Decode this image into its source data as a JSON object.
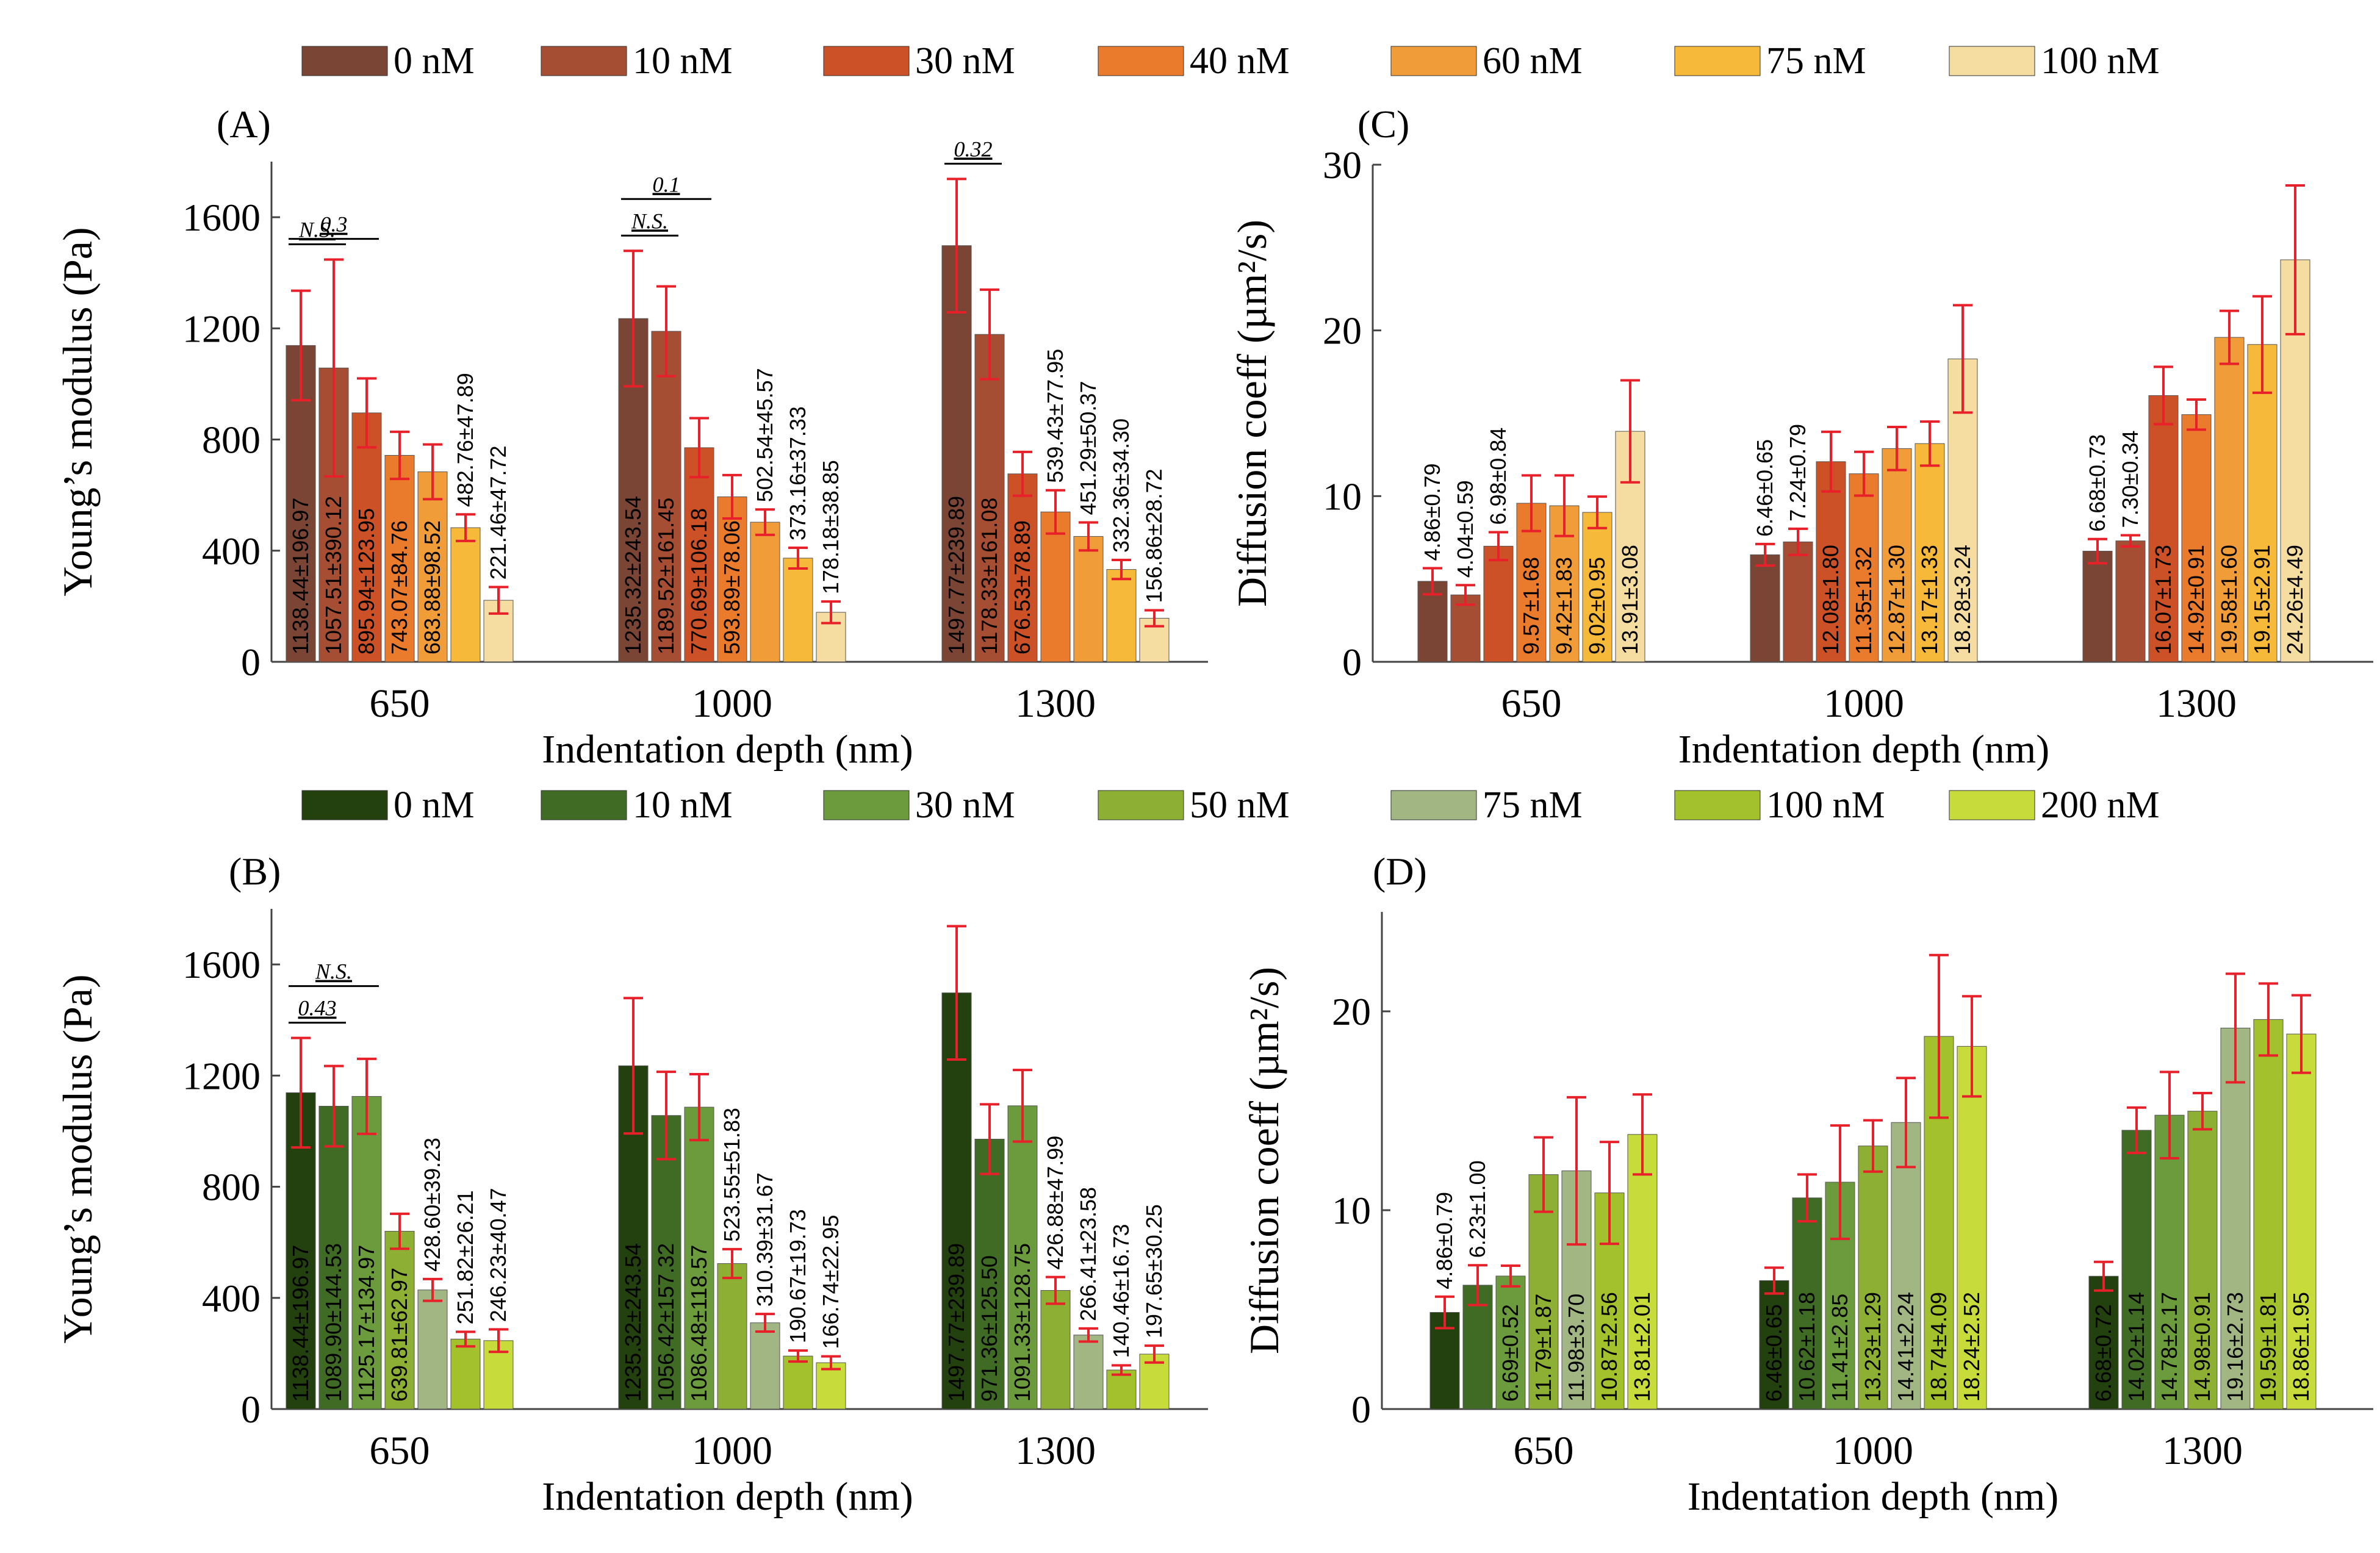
{
  "legends": [
    {
      "name": "legend-top",
      "entries": [
        {
          "label": "0 nM",
          "color": "#7a4535"
        },
        {
          "label": "10 nM",
          "color": "#a64e34"
        },
        {
          "label": "30 nM",
          "color": "#cc5126"
        },
        {
          "label": "40 nM",
          "color": "#ea7a2c"
        },
        {
          "label": "60 nM",
          "color": "#f09c38"
        },
        {
          "label": "75 nM",
          "color": "#f7b93a"
        },
        {
          "label": "100 nM",
          "color": "#f5dca0"
        }
      ]
    },
    {
      "name": "legend-bottom",
      "entries": [
        {
          "label": "0 nM",
          "color": "#23400f"
        },
        {
          "label": "10 nM",
          "color": "#3f6b25"
        },
        {
          "label": "30 nM",
          "color": "#6b9b3c"
        },
        {
          "label": "50 nM",
          "color": "#8db034"
        },
        {
          "label": "75 nM",
          "color": "#a1b682"
        },
        {
          "label": "100 nM",
          "color": "#a3c12c"
        },
        {
          "label": "200 nM",
          "color": "#c7dc3a"
        }
      ]
    }
  ],
  "error_color": "#e8202a",
  "annotation_color": "#e8202a",
  "chart_data": [
    {
      "id": "A",
      "panel_label": "(A)",
      "type": "bar",
      "title": "",
      "xlabel": "Indentation depth (nm)",
      "ylabel": "Young’s modulus (Pa)",
      "ylim": [
        0,
        1800
      ],
      "yticks": [
        0,
        400,
        800,
        1200,
        1600
      ],
      "tick_labels": [
        "0",
        "400",
        "800",
        "1200",
        "1600"
      ],
      "categories": [
        "650",
        "1000",
        "1300"
      ],
      "legend": "legend-top",
      "series": [
        {
          "name": "0 nM",
          "color": "#7a4535",
          "values": [
            1138.44,
            1235.32,
            1497.77
          ],
          "errors": [
            196.97,
            243.54,
            239.89
          ],
          "labels": [
            "1138.44±196.97",
            "1235.32±243.54",
            "1497.77±239.89"
          ]
        },
        {
          "name": "10 nM",
          "color": "#a64e34",
          "values": [
            1057.51,
            1189.52,
            1178.33
          ],
          "errors": [
            390.12,
            161.45,
            161.08
          ],
          "labels": [
            "1057.51±390.12",
            "1189.52±161.45",
            "1178.33±161.08"
          ]
        },
        {
          "name": "30 nM",
          "color": "#cc5126",
          "values": [
            895.94,
            770.69,
            676.53
          ],
          "errors": [
            123.95,
            106.18,
            78.89
          ],
          "labels": [
            "895.94±123.95",
            "770.69±106.18",
            "676.53±78.89"
          ]
        },
        {
          "name": "40 nM",
          "color": "#ea7a2c",
          "values": [
            743.07,
            593.89,
            539.43
          ],
          "errors": [
            84.76,
            78.06,
            77.95
          ],
          "labels": [
            "743.07±84.76",
            "593.89±78.06",
            "539.43±77.95"
          ]
        },
        {
          "name": "60 nM",
          "color": "#f09c38",
          "values": [
            683.88,
            502.54,
            451.29
          ],
          "errors": [
            98.52,
            45.57,
            50.37
          ],
          "labels": [
            "683.88±98.52",
            "502.54±45.57",
            "451.29±50.37"
          ]
        },
        {
          "name": "75 nM",
          "color": "#f7b93a",
          "values": [
            482.76,
            373.16,
            332.36
          ],
          "errors": [
            47.89,
            37.33,
            34.3
          ],
          "labels": [
            "482.76±47.89",
            "373.16±37.33",
            "332.36±34.30"
          ]
        },
        {
          "name": "100 nM",
          "color": "#f5dca0",
          "values": [
            221.46,
            178.18,
            156.86
          ],
          "errors": [
            47.72,
            38.85,
            28.72
          ],
          "labels": [
            "221.46±47.72",
            "178.18±38.85",
            "156.86±28.72"
          ]
        }
      ],
      "annotations": [
        {
          "group": 0,
          "from": 0,
          "to": 1,
          "text": "N.S.",
          "level": 1
        },
        {
          "group": 0,
          "from": 0,
          "to": 2,
          "text": "0.3",
          "level": 2
        },
        {
          "group": 1,
          "from": 0,
          "to": 1,
          "text": "N.S.",
          "level": 1
        },
        {
          "group": 1,
          "from": 0,
          "to": 2,
          "text": "0.1",
          "level": 2
        },
        {
          "group": 2,
          "from": 0,
          "to": 1,
          "text": "0.32",
          "level": 1
        }
      ]
    },
    {
      "id": "C",
      "panel_label": "(C)",
      "type": "bar",
      "title": "",
      "xlabel": "Indentation depth (nm)",
      "ylabel": "Diffusion coeff (µm²/s)",
      "ylim": [
        0,
        30
      ],
      "yticks": [
        0,
        10,
        20,
        30
      ],
      "tick_labels": [
        "0",
        "10",
        "20",
        "30"
      ],
      "categories": [
        "650",
        "1000",
        "1300"
      ],
      "legend": "legend-top",
      "series": [
        {
          "name": "0 nM",
          "color": "#7a4535",
          "values": [
            4.86,
            6.46,
            6.68
          ],
          "errors": [
            0.79,
            0.65,
            0.73
          ],
          "labels": [
            "4.86±0.79",
            "6.46±0.65",
            "6.68±0.73"
          ]
        },
        {
          "name": "10 nM",
          "color": "#a64e34",
          "values": [
            4.04,
            7.24,
            7.3
          ],
          "errors": [
            0.59,
            0.79,
            0.34
          ],
          "labels": [
            "4.04±0.59",
            "7.24±0.79",
            "7.30±0.34"
          ]
        },
        {
          "name": "30 nM",
          "color": "#cc5126",
          "values": [
            6.98,
            12.08,
            16.07
          ],
          "errors": [
            0.84,
            1.8,
            1.73
          ],
          "labels": [
            "6.98±0.84",
            "12.08±1.80",
            "16.07±1.73"
          ]
        },
        {
          "name": "40 nM",
          "color": "#ea7a2c",
          "values": [
            9.57,
            11.35,
            14.92
          ],
          "errors": [
            1.68,
            1.32,
            0.91
          ],
          "labels": [
            "9.57±1.68",
            "11.35±1.32",
            "14.92±0.91"
          ]
        },
        {
          "name": "60 nM",
          "color": "#f09c38",
          "values": [
            9.42,
            12.87,
            19.58
          ],
          "errors": [
            1.83,
            1.3,
            1.6
          ],
          "labels": [
            "9.42±1.83",
            "12.87±1.30",
            "19.58±1.60"
          ]
        },
        {
          "name": "75 nM",
          "color": "#f7b93a",
          "values": [
            9.02,
            13.17,
            19.15
          ],
          "errors": [
            0.95,
            1.33,
            2.91
          ],
          "labels": [
            "9.02±0.95",
            "13.17±1.33",
            "19.15±2.91"
          ]
        },
        {
          "name": "100 nM",
          "color": "#f5dca0",
          "values": [
            13.91,
            18.28,
            24.26
          ],
          "errors": [
            3.08,
            3.24,
            4.49
          ],
          "labels": [
            "13.91±3.08",
            "18.28±3.24",
            "24.26±4.49"
          ]
        }
      ],
      "annotations": []
    },
    {
      "id": "B",
      "panel_label": "(B)",
      "type": "bar",
      "title": "",
      "xlabel": "Indentation depth (nm)",
      "ylabel": "Young’s modulus (Pa)",
      "ylim": [
        0,
        1800
      ],
      "yticks": [
        0,
        400,
        800,
        1200,
        1600
      ],
      "tick_labels": [
        "0",
        "400",
        "800",
        "1200",
        "1600"
      ],
      "categories": [
        "650",
        "1000",
        "1300"
      ],
      "legend": "legend-bottom",
      "series": [
        {
          "name": "0 nM",
          "color": "#23400f",
          "values": [
            1138.44,
            1235.32,
            1497.77
          ],
          "errors": [
            196.97,
            243.54,
            239.89
          ],
          "labels": [
            "1138.44±196.97",
            "1235.32±243.54",
            "1497.77±239.89"
          ]
        },
        {
          "name": "10 nM",
          "color": "#3f6b25",
          "values": [
            1089.9,
            1056.42,
            971.36
          ],
          "errors": [
            144.53,
            157.32,
            125.5
          ],
          "labels": [
            "1089.90±144.53",
            "1056.42±157.32",
            "971.36±125.50"
          ]
        },
        {
          "name": "30 nM",
          "color": "#6b9b3c",
          "values": [
            1125.17,
            1086.48,
            1091.33
          ],
          "errors": [
            134.97,
            118.57,
            128.75
          ],
          "labels": [
            "1125.17±134.97",
            "1086.48±118.57",
            "1091.33±128.75"
          ]
        },
        {
          "name": "50 nM",
          "color": "#8db034",
          "values": [
            639.81,
            523.55,
            426.88
          ],
          "errors": [
            62.97,
            51.83,
            47.99
          ],
          "labels": [
            "639.81±62.97",
            "523.55±51.83",
            "426.88±47.99"
          ]
        },
        {
          "name": "75 nM",
          "color": "#a1b682",
          "values": [
            428.6,
            310.39,
            266.41
          ],
          "errors": [
            39.23,
            31.67,
            23.58
          ],
          "labels": [
            "428.60±39.23",
            "310.39±31.67",
            "266.41±23.58"
          ]
        },
        {
          "name": "100 nM",
          "color": "#a3c12c",
          "values": [
            251.82,
            190.67,
            140.46
          ],
          "errors": [
            26.21,
            19.73,
            16.73
          ],
          "labels": [
            "251.82±26.21",
            "190.67±19.73",
            "140.46±16.73"
          ]
        },
        {
          "name": "200 nM",
          "color": "#c7dc3a",
          "values": [
            246.23,
            166.74,
            197.65
          ],
          "errors": [
            40.47,
            22.95,
            30.25
          ],
          "labels": [
            "246.23±40.47",
            "166.74±22.95",
            "197.65±30.25"
          ]
        }
      ],
      "annotations": [
        {
          "group": 0,
          "from": 0,
          "to": 1,
          "text": "0.43",
          "level": 1
        },
        {
          "group": 0,
          "from": 0,
          "to": 2,
          "text": "N.S.",
          "level": 2
        }
      ]
    },
    {
      "id": "D",
      "panel_label": "(D)",
      "type": "bar",
      "title": "",
      "xlabel": "Indentation depth (nm)",
      "ylabel": "Diffusion coeff (µm²/s)",
      "ylim": [
        0,
        25
      ],
      "yticks": [
        0,
        10,
        20
      ],
      "tick_labels": [
        "0",
        "10",
        "20"
      ],
      "categories": [
        "650",
        "1000",
        "1300"
      ],
      "legend": "legend-bottom",
      "series": [
        {
          "name": "0 nM",
          "color": "#23400f",
          "values": [
            4.86,
            6.46,
            6.68
          ],
          "errors": [
            0.79,
            0.65,
            0.72
          ],
          "labels": [
            "4.86±0.79",
            "6.46±0.65",
            "6.68±0.72"
          ]
        },
        {
          "name": "10 nM",
          "color": "#3f6b25",
          "values": [
            6.23,
            10.62,
            14.02
          ],
          "errors": [
            1.0,
            1.18,
            1.14
          ],
          "labels": [
            "6.23±1.00",
            "10.62±1.18",
            "14.02±1.14"
          ]
        },
        {
          "name": "30 nM",
          "color": "#6b9b3c",
          "values": [
            6.69,
            11.41,
            14.78
          ],
          "errors": [
            0.52,
            2.85,
            2.17
          ],
          "labels": [
            "6.69±0.52",
            "11.41±2.85",
            "14.78±2.17"
          ]
        },
        {
          "name": "50 nM",
          "color": "#8db034",
          "values": [
            11.79,
            13.23,
            14.98
          ],
          "errors": [
            1.87,
            1.29,
            0.91
          ],
          "labels": [
            "11.79±1.87",
            "13.23±1.29",
            "14.98±0.91"
          ]
        },
        {
          "name": "75 nM",
          "color": "#a1b682",
          "values": [
            11.98,
            14.41,
            19.16
          ],
          "errors": [
            3.7,
            2.24,
            2.73
          ],
          "labels": [
            "11.98±3.70",
            "14.41±2.24",
            "19.16±2.73"
          ]
        },
        {
          "name": "100 nM",
          "color": "#a3c12c",
          "values": [
            10.87,
            18.74,
            19.59
          ],
          "errors": [
            2.56,
            4.09,
            1.81
          ],
          "labels": [
            "10.87±2.56",
            "18.74±4.09",
            "19.59±1.81"
          ]
        },
        {
          "name": "200 nM",
          "color": "#c7dc3a",
          "values": [
            13.81,
            18.24,
            18.86
          ],
          "errors": [
            2.01,
            2.52,
            1.95
          ],
          "labels": [
            "13.81±2.01",
            "18.24±2.52",
            "18.86±1.95"
          ]
        }
      ],
      "annotations": []
    }
  ]
}
